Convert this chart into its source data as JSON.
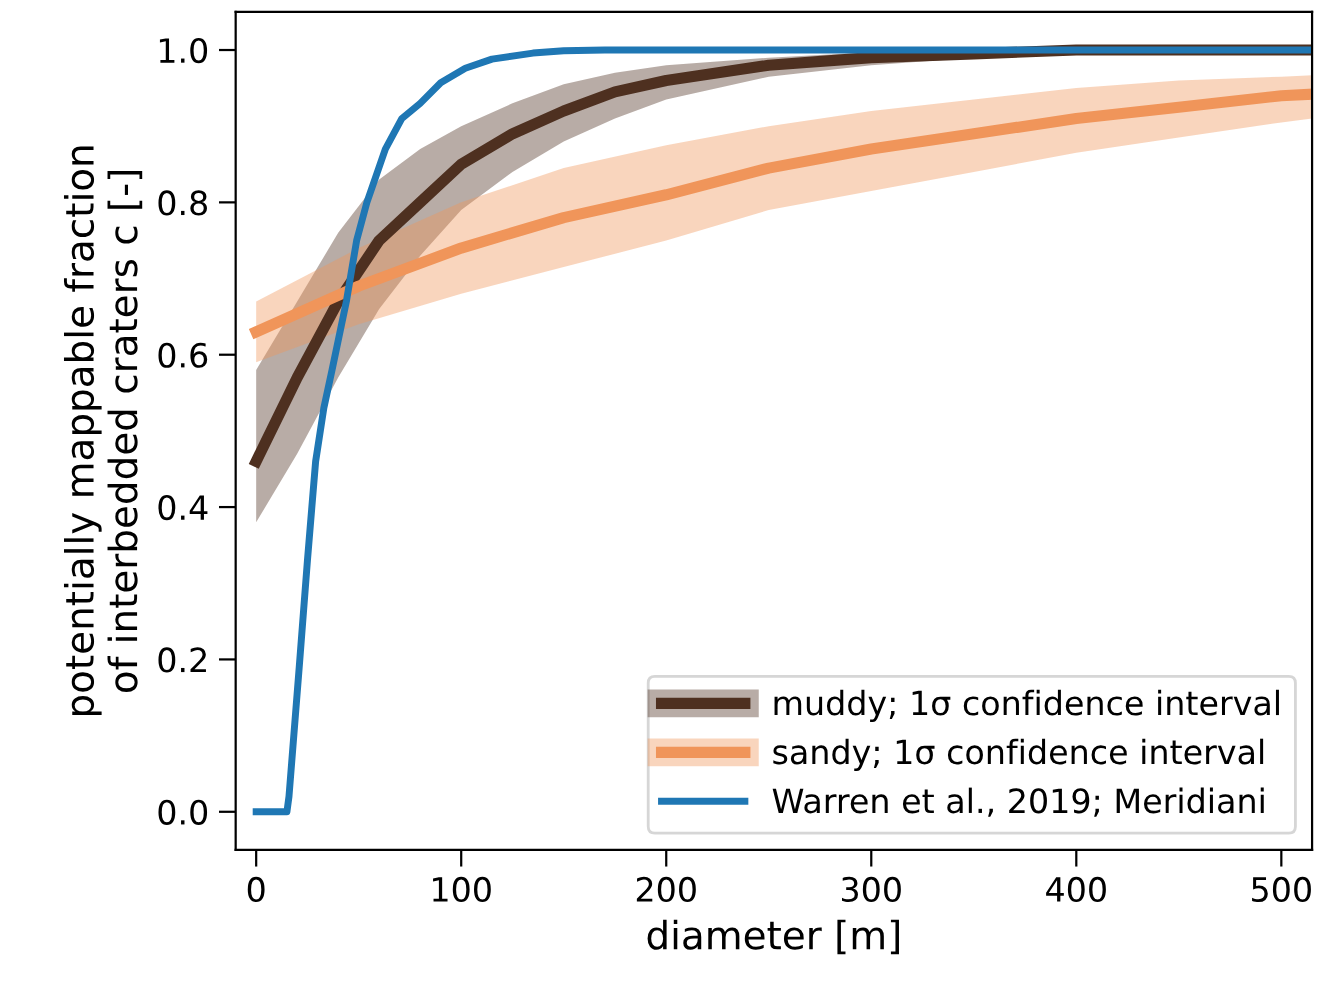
{
  "chart_data": {
    "type": "line",
    "xlabel": "diameter [m]",
    "ylabel": "potentially mappable fraction\nof interbedded craters c [-]",
    "xlim": [
      -10,
      515
    ],
    "ylim": [
      -0.05,
      1.05
    ],
    "xticks": [
      0,
      100,
      200,
      300,
      400,
      500
    ],
    "yticks": [
      {
        "value": 0,
        "label": "0.0"
      },
      {
        "value": 0.2,
        "label": "0.2"
      },
      {
        "value": 0.4,
        "label": "0.4"
      },
      {
        "value": 0.6,
        "label": "0.6"
      },
      {
        "value": 0.8,
        "label": "0.8"
      },
      {
        "value": 1,
        "label": "1.0"
      }
    ],
    "grid": false,
    "legend": "bottom right",
    "marker": "none",
    "line_style": "solid",
    "series": [
      {
        "name": "muddy; 1σ confidence interval",
        "color": "#4e3020",
        "x": [
          0,
          20,
          40,
          60,
          80,
          100,
          125,
          150,
          175,
          200,
          250,
          300,
          350,
          400,
          450,
          500,
          515
        ],
        "values": [
          0.46,
          0.57,
          0.67,
          0.75,
          0.8,
          0.85,
          0.89,
          0.92,
          0.945,
          0.96,
          0.98,
          0.99,
          0.995,
          1.0,
          1.0,
          1.0,
          1.0
        ],
        "lower": [
          0.38,
          0.47,
          0.57,
          0.66,
          0.73,
          0.79,
          0.84,
          0.88,
          0.91,
          0.935,
          0.965,
          0.98,
          0.99,
          0.995,
          1.0,
          1.0,
          1.0
        ],
        "upper": [
          0.58,
          0.67,
          0.76,
          0.83,
          0.87,
          0.9,
          0.93,
          0.955,
          0.97,
          0.98,
          0.99,
          0.997,
          1.0,
          1.0,
          1.0,
          1.0,
          1.0
        ]
      },
      {
        "name": "sandy; 1σ confidence interval",
        "color": "#f0955a",
        "x": [
          0,
          50,
          100,
          150,
          200,
          250,
          300,
          350,
          400,
          450,
          500,
          515
        ],
        "values": [
          0.63,
          0.69,
          0.74,
          0.78,
          0.81,
          0.845,
          0.87,
          0.89,
          0.91,
          0.925,
          0.94,
          0.942
        ],
        "lower": [
          0.59,
          0.64,
          0.68,
          0.715,
          0.75,
          0.79,
          0.815,
          0.84,
          0.865,
          0.885,
          0.905,
          0.91
        ],
        "upper": [
          0.67,
          0.74,
          0.8,
          0.845,
          0.875,
          0.9,
          0.92,
          0.935,
          0.95,
          0.96,
          0.965,
          0.967
        ]
      },
      {
        "name": "Warren et al., 2019; Meridiani",
        "color": "#1f77b4",
        "x": [
          0,
          15,
          16,
          21,
          25,
          29,
          33,
          37,
          44,
          49,
          54,
          63,
          71,
          80,
          90,
          102,
          115,
          135,
          150,
          170,
          515
        ],
        "values": [
          0.0,
          0.0,
          0.02,
          0.19,
          0.33,
          0.46,
          0.53,
          0.58,
          0.67,
          0.75,
          0.8,
          0.87,
          0.91,
          0.93,
          0.957,
          0.976,
          0.988,
          0.996,
          0.999,
          1.0,
          1.0
        ]
      }
    ]
  }
}
